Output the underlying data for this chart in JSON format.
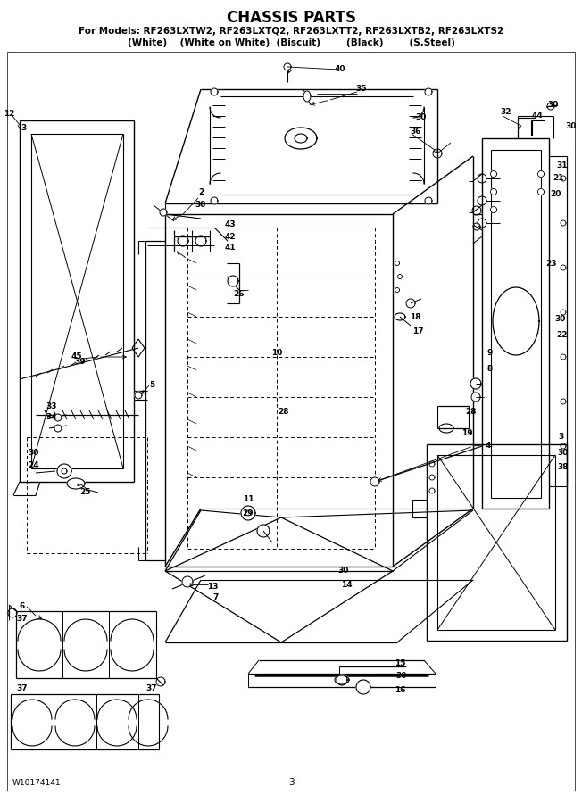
{
  "title": "CHASSIS PARTS",
  "subtitle": "For Models: RF263LXTW2, RF263LXTQ2, RF263LXTT2, RF263LXTB2, RF263LXTS2",
  "subtitle2": "(White)    (White on White)  (Biscuit)        (Black)        (S.Steel)",
  "footer_left": "W10174141",
  "footer_center": "3",
  "bg_color": "#ffffff"
}
